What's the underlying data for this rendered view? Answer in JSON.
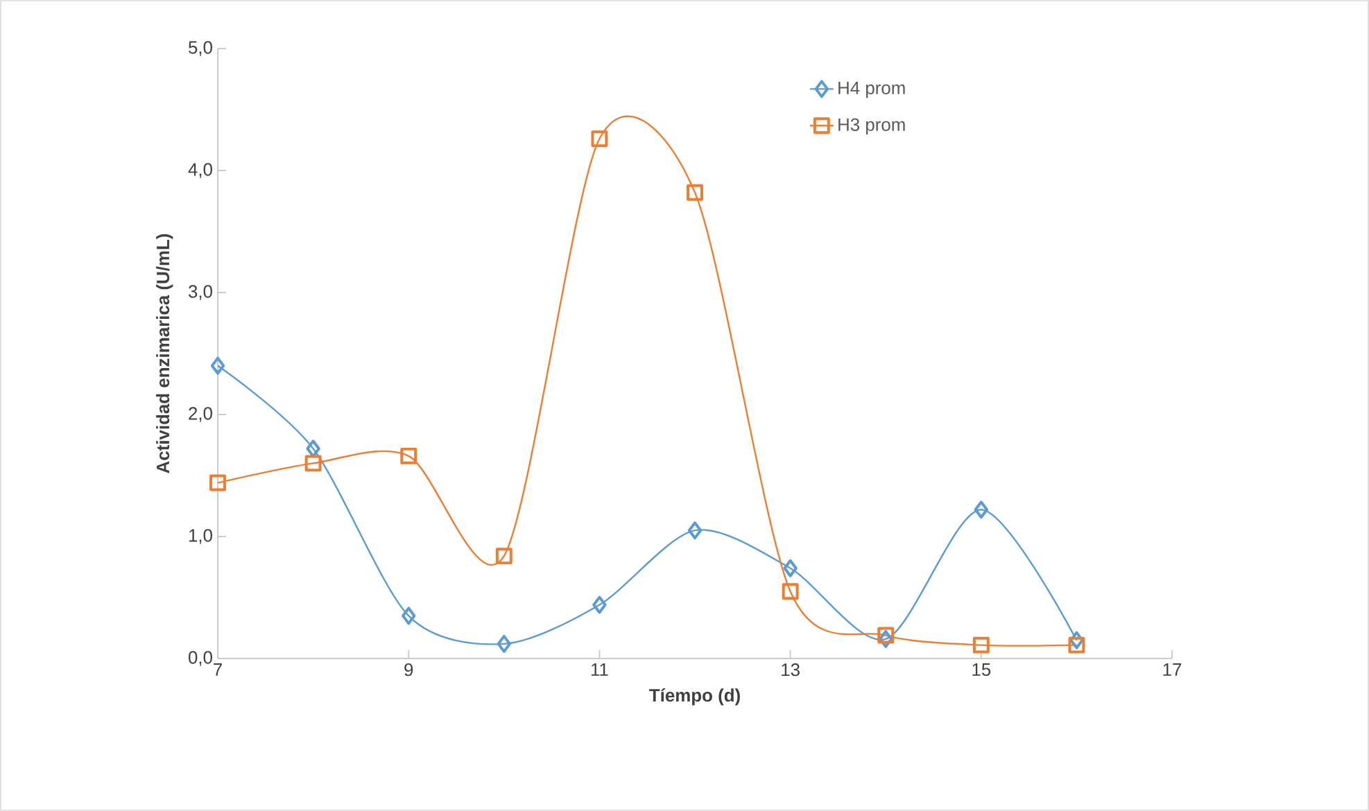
{
  "chart_data": {
    "type": "line",
    "xlabel": "Tíempo (d)",
    "ylabel": "Actividad enzimarica (U/mL)",
    "x": [
      7,
      8,
      9,
      10,
      11,
      12,
      13,
      14,
      15,
      16
    ],
    "series": [
      {
        "name": "H4 prom",
        "color": "#5b9bd5",
        "marker": "diamond",
        "values": [
          2.4,
          1.72,
          0.35,
          0.12,
          0.44,
          1.05,
          0.74,
          0.16,
          1.22,
          0.15
        ]
      },
      {
        "name": "H3 prom",
        "color": "#ed7d31",
        "marker": "square",
        "values": [
          1.44,
          1.6,
          1.66,
          0.84,
          4.26,
          3.82,
          0.55,
          0.19,
          0.11,
          0.11
        ]
      }
    ],
    "xlim": [
      7,
      17
    ],
    "xticks": [
      7,
      9,
      11,
      13,
      15,
      17
    ],
    "ylim": [
      0,
      5
    ],
    "yticks": [
      {
        "value": 0,
        "label": "0,0"
      },
      {
        "value": 1,
        "label": "1,0"
      },
      {
        "value": 2,
        "label": "2,0"
      },
      {
        "value": 3,
        "label": "3,0"
      },
      {
        "value": 4,
        "label": "4,0"
      },
      {
        "value": 5,
        "label": "5,0"
      }
    ],
    "grid": false,
    "legend": "top right",
    "line_style": "solid"
  }
}
